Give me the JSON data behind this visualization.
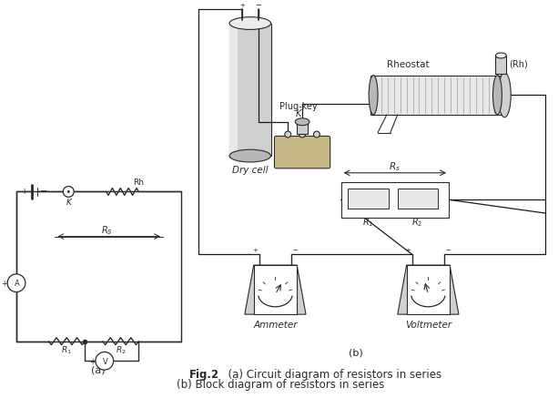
{
  "bg_color": "#ffffff",
  "line_color": "#2a2a2a",
  "gray1": "#d0d0d0",
  "gray2": "#b8b8b8",
  "gray3": "#e8e8e8",
  "caption_line1_bold": "Fig.2",
  "caption_line1_rest": "  (a) Circuit diagram of resistors in series",
  "caption_line2": "(b) Block diagram of resistors in series",
  "label_a": "(a)",
  "label_b": "(b)",
  "label_dry_cell": "Dry cell",
  "label_plug_key": "Plug-key",
  "label_K": "K",
  "label_rheostat": "Rheostat",
  "label_Rh_bracket": "(Rh)",
  "label_ammeter": "Ammeter",
  "label_voltmeter": "Voltmeter"
}
